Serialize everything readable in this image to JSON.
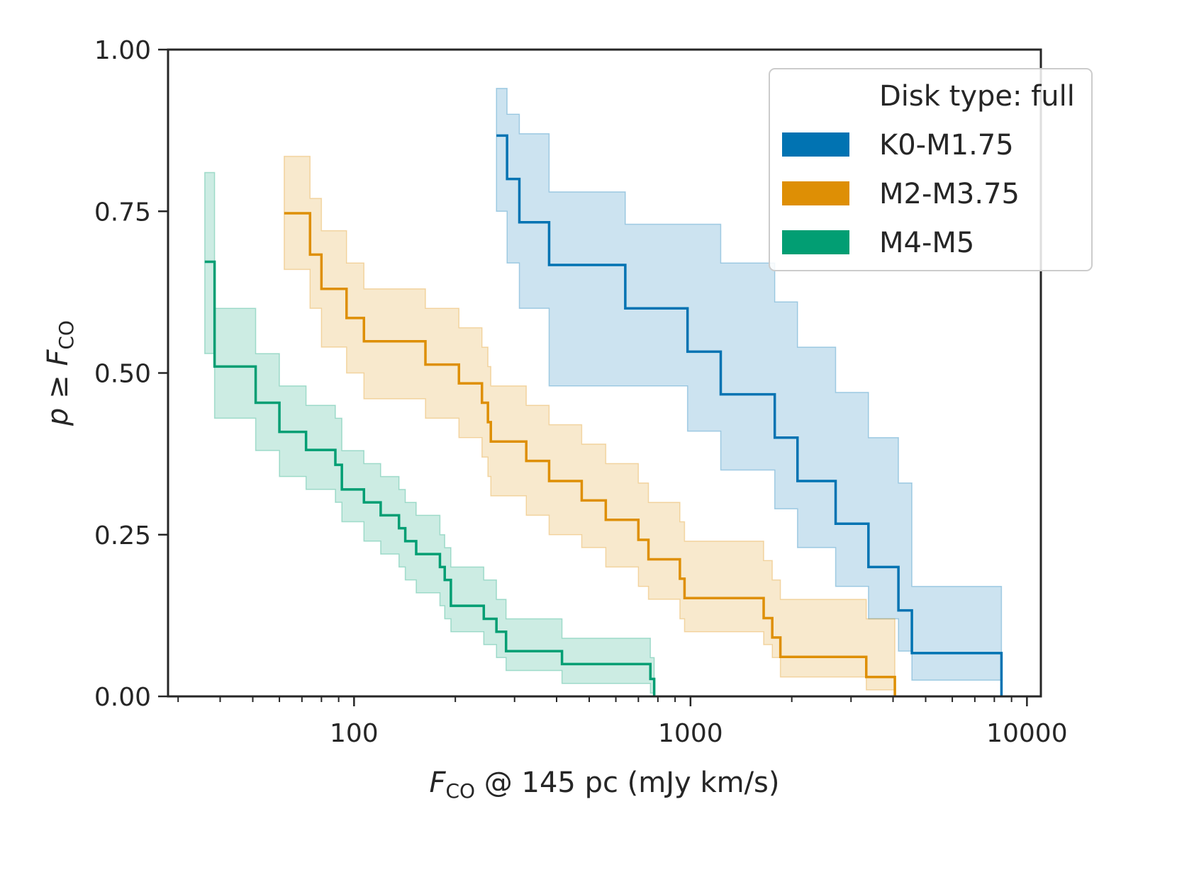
{
  "chart_data": {
    "type": "line",
    "step": true,
    "xscale": "log",
    "xlim": [
      28,
      11000
    ],
    "ylim": [
      0,
      1
    ],
    "xticks": [
      100,
      1000,
      10000
    ],
    "xtick_labels": [
      "100",
      "1000",
      "10000"
    ],
    "yticks": [
      0,
      0.25,
      0.5,
      0.75,
      1.0
    ],
    "ytick_labels": [
      "0.00",
      "0.25",
      "0.50",
      "0.75",
      "1.00"
    ],
    "xlabel": {
      "main": "F",
      "sub": "CO",
      "rest": " @ 145 pc (mJy km/s)"
    },
    "ylabel": {
      "main": "p ≥ F",
      "sub": "CO"
    },
    "legend": {
      "title": "Disk type: full",
      "position": "upper right"
    },
    "series": [
      {
        "name": "K0-M1.75",
        "color": "#0173b2",
        "x": [
          265,
          285,
          310,
          380,
          640,
          980,
          1230,
          1780,
          2080,
          2700,
          3380,
          4150,
          4550,
          8400
        ],
        "y": [
          0.867,
          0.8,
          0.733,
          0.667,
          0.6,
          0.533,
          0.467,
          0.4,
          0.333,
          0.267,
          0.2,
          0.133,
          0.067,
          0.0
        ],
        "lower": [
          0.75,
          0.67,
          0.6,
          0.48,
          0.48,
          0.41,
          0.35,
          0.29,
          0.23,
          0.17,
          0.12,
          0.07,
          0.025,
          0.0
        ],
        "upper": [
          0.94,
          0.9,
          0.87,
          0.78,
          0.73,
          0.73,
          0.67,
          0.61,
          0.54,
          0.47,
          0.4,
          0.33,
          0.17,
          0.17
        ]
      },
      {
        "name": "M2-M3.75",
        "color": "#de8f05",
        "x": [
          62,
          74,
          80,
          95,
          107,
          163,
          205,
          240,
          250,
          255,
          325,
          380,
          475,
          560,
          700,
          750,
          930,
          960,
          1650,
          1750,
          1850,
          3330,
          4050
        ],
        "y": [
          0.747,
          0.683,
          0.63,
          0.585,
          0.549,
          0.513,
          0.484,
          0.454,
          0.424,
          0.394,
          0.364,
          0.333,
          0.303,
          0.273,
          0.242,
          0.212,
          0.182,
          0.152,
          0.121,
          0.091,
          0.061,
          0.03,
          0.0
        ],
        "lower": [
          0.66,
          0.6,
          0.54,
          0.5,
          0.46,
          0.43,
          0.4,
          0.37,
          0.34,
          0.31,
          0.28,
          0.25,
          0.23,
          0.2,
          0.17,
          0.15,
          0.12,
          0.1,
          0.08,
          0.06,
          0.03,
          0.01,
          0.0
        ],
        "upper": [
          0.835,
          0.77,
          0.72,
          0.67,
          0.63,
          0.6,
          0.57,
          0.54,
          0.51,
          0.48,
          0.45,
          0.42,
          0.39,
          0.36,
          0.33,
          0.3,
          0.27,
          0.24,
          0.21,
          0.18,
          0.15,
          0.12,
          0.08
        ]
      },
      {
        "name": "M4-M5",
        "color": "#029e73",
        "x": [
          36,
          38.5,
          51,
          60,
          72,
          88,
          92,
          107,
          120,
          136,
          142,
          153,
          180,
          186,
          194,
          243,
          265,
          283,
          415,
          760,
          780
        ],
        "y": [
          0.672,
          0.51,
          0.454,
          0.409,
          0.381,
          0.358,
          0.32,
          0.3,
          0.28,
          0.26,
          0.24,
          0.22,
          0.2,
          0.18,
          0.14,
          0.12,
          0.1,
          0.07,
          0.05,
          0.027,
          0.0
        ],
        "lower": [
          0.53,
          0.43,
          0.38,
          0.34,
          0.32,
          0.3,
          0.27,
          0.24,
          0.22,
          0.2,
          0.18,
          0.16,
          0.14,
          0.12,
          0.1,
          0.08,
          0.06,
          0.04,
          0.02,
          0.005,
          0.0
        ],
        "upper": [
          0.81,
          0.6,
          0.53,
          0.48,
          0.45,
          0.43,
          0.38,
          0.36,
          0.34,
          0.32,
          0.3,
          0.28,
          0.25,
          0.23,
          0.2,
          0.18,
          0.15,
          0.12,
          0.09,
          0.06,
          0.04
        ]
      }
    ]
  }
}
